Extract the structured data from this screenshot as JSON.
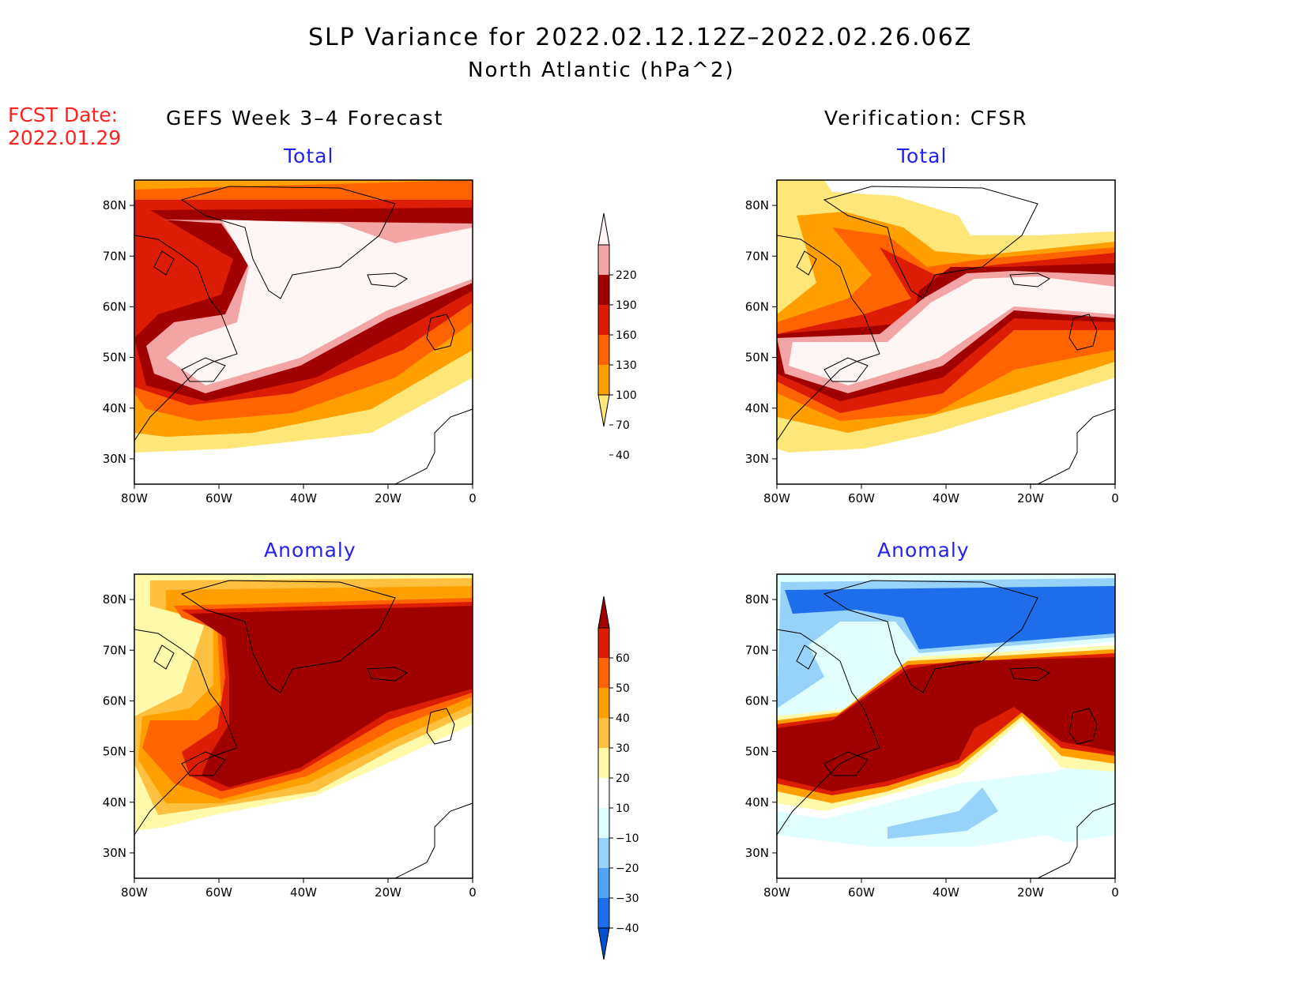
{
  "header": {
    "title": "SLP Variance for 2022.02.12.12Z–2022.02.26.06Z",
    "subtitle": "North Atlantic (hPa^2)",
    "fcst_label": "FCST Date:",
    "fcst_date": "2022.01.29",
    "left_heading": "GEFS Week 3–4 Forecast",
    "right_heading": "Verification: CFSR"
  },
  "panels": [
    {
      "id": "fcst-total",
      "label": "Total",
      "field": "total"
    },
    {
      "id": "verif-total",
      "label": "Total",
      "field": "total"
    },
    {
      "id": "fcst-anomaly",
      "label": "Anomaly",
      "field": "anomaly"
    },
    {
      "id": "verif-anomaly",
      "label": "Anomaly",
      "field": "anomaly"
    }
  ],
  "axes": {
    "x_ticks": [
      {
        "lon": -80,
        "label": "80W"
      },
      {
        "lon": -60,
        "label": "60W"
      },
      {
        "lon": -40,
        "label": "40W"
      },
      {
        "lon": -20,
        "label": "20W"
      },
      {
        "lon": 0,
        "label": "0"
      }
    ],
    "y_ticks": [
      {
        "lat": 30,
        "label": "30N"
      },
      {
        "lat": 40,
        "label": "40N"
      },
      {
        "lat": 50,
        "label": "50N"
      },
      {
        "lat": 60,
        "label": "60N"
      },
      {
        "lat": 70,
        "label": "70N"
      },
      {
        "lat": 80,
        "label": "80N"
      }
    ],
    "lon_range": [
      -80,
      0
    ],
    "lat_range": [
      25,
      85
    ]
  },
  "colorbars": {
    "total": {
      "levels": [
        "40",
        "70",
        "100",
        "130",
        "160",
        "190",
        "220"
      ],
      "colors": [
        "#fff5f5",
        "#f3a5a5",
        "#a00000",
        "#dd1c05",
        "#ff6400",
        "#ffa000",
        "#ffe678"
      ]
    },
    "anomaly": {
      "levels": [
        "−40",
        "−30",
        "−20",
        "−10",
        "10",
        "20",
        "30",
        "40",
        "50",
        "60"
      ],
      "colors": [
        "#a00000",
        "#dd1c05",
        "#ff6400",
        "#ffa000",
        "#ffc040",
        "#fffaaa",
        "#ffffff",
        "#e1ffff",
        "#96d2fa",
        "#50a5f5",
        "#1e6eeb",
        "#0050d0"
      ]
    }
  }
}
